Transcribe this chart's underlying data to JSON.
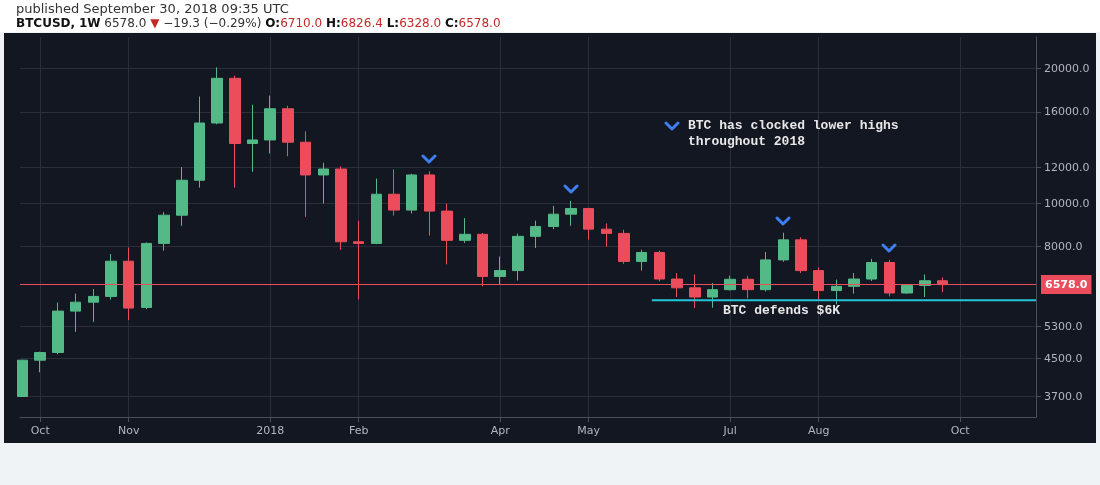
{
  "chart_data": {
    "type": "candlestick",
    "title": "published September 30, 2018 09:35 UTC",
    "subtitle": "BTCUSD, 1W 6578.0 ▼ −19.3 (−0.29%) O:6710.0 H:6826.4 L:6328.0 C:6578.0",
    "annotations": [
      "BTC has clocked lower highs throughout 2018",
      "BTC defends $6K"
    ],
    "xlim": [
      "2017-09-24",
      "2018-10-31"
    ],
    "xticks": [
      {
        "value": "2017-10-02",
        "label": "Oct"
      },
      {
        "value": "2017-11-06",
        "label": "Nov"
      },
      {
        "value": "2018-01-01",
        "label": "2018"
      },
      {
        "value": "2018-02-05",
        "label": "Feb"
      },
      {
        "value": "2018-04-02",
        "label": "Apr"
      },
      {
        "value": "2018-05-07",
        "label": "May"
      },
      {
        "value": "2018-07-02",
        "label": "Jul"
      },
      {
        "value": "2018-08-06",
        "label": "Aug"
      },
      {
        "value": "2018-10-01",
        "label": "Oct"
      }
    ],
    "ylim": [
      3330,
      23500
    ],
    "yticks": [
      {
        "value": 3700,
        "label": "3700.0"
      },
      {
        "value": 4500,
        "label": "4500.0"
      },
      {
        "value": 5300,
        "label": "5300.0"
      },
      {
        "value": 8000,
        "label": "8000.0"
      },
      {
        "value": 10000,
        "label": "10000.0"
      },
      {
        "value": 12000,
        "label": "12000.0"
      },
      {
        "value": 16000,
        "label": "16000.0"
      },
      {
        "value": 20000,
        "label": "20000.0"
      }
    ],
    "log": "y",
    "grid": true,
    "ref_lines": [
      {
        "axis": "y",
        "value": 6578,
        "label": "6578.0",
        "color": "#eb4d5c"
      }
    ],
    "series": [
      {
        "x": [
          "2017-09-25",
          "2017-10-02",
          "2017-10-09",
          "2017-10-16",
          "2017-10-23",
          "2017-10-30",
          "2017-11-06",
          "2017-11-13",
          "2017-11-20",
          "2017-11-27",
          "2017-12-04",
          "2017-12-11",
          "2017-12-18",
          "2017-12-25",
          "2018-01-01",
          "2018-01-08",
          "2018-01-15",
          "2018-01-22",
          "2018-01-29",
          "2018-02-05",
          "2018-02-12",
          "2018-02-19",
          "2018-02-26",
          "2018-03-05",
          "2018-03-12",
          "2018-03-19",
          "2018-03-26",
          "2018-04-02",
          "2018-04-09",
          "2018-04-16",
          "2018-04-23",
          "2018-04-30",
          "2018-05-07",
          "2018-05-14",
          "2018-05-21",
          "2018-05-28",
          "2018-06-04",
          "2018-06-11",
          "2018-06-18",
          "2018-06-25",
          "2018-07-02",
          "2018-07-09",
          "2018-07-16",
          "2018-07-23",
          "2018-07-30",
          "2018-08-06",
          "2018-08-13",
          "2018-08-20",
          "2018-08-27",
          "2018-09-03",
          "2018-09-10",
          "2018-09-17",
          "2018-09-24"
        ],
        "ohlc": [
          [
            3700,
            4470,
            3690,
            4460
          ],
          [
            4460,
            4660,
            4190,
            4640
          ],
          [
            4640,
            6000,
            4600,
            5740
          ],
          [
            5740,
            6280,
            5160,
            6010
          ],
          [
            6010,
            6430,
            5430,
            6190
          ],
          [
            6190,
            7700,
            6090,
            7420
          ],
          [
            7420,
            7960,
            5480,
            5830
          ],
          [
            5850,
            8170,
            5800,
            8130
          ],
          [
            8130,
            9560,
            7830,
            9400
          ],
          [
            9400,
            12040,
            8900,
            11250
          ],
          [
            11250,
            17300,
            10830,
            15100
          ],
          [
            15100,
            20100,
            15000,
            19000
          ],
          [
            19000,
            19270,
            10830,
            13590
          ],
          [
            13590,
            16590,
            11750,
            13840
          ],
          [
            13840,
            17390,
            12910,
            16250
          ],
          [
            16250,
            16500,
            12730,
            13680
          ],
          [
            13680,
            14470,
            9320,
            11560
          ],
          [
            11560,
            12310,
            9980,
            11920
          ],
          [
            11920,
            12080,
            7870,
            8200
          ],
          [
            8200,
            9140,
            6090,
            8130
          ],
          [
            8130,
            11340,
            8100,
            10470
          ],
          [
            10470,
            11900,
            9380,
            9650
          ],
          [
            9650,
            11630,
            9480,
            11560
          ],
          [
            11560,
            11790,
            8460,
            9600
          ],
          [
            9600,
            9980,
            7300,
            8260
          ],
          [
            8260,
            9260,
            8150,
            8520
          ],
          [
            8520,
            8580,
            6520,
            6860
          ],
          [
            6860,
            7600,
            6570,
            7070
          ],
          [
            7070,
            8550,
            6720,
            8430
          ],
          [
            8430,
            9140,
            7940,
            8870
          ],
          [
            8870,
            9860,
            8750,
            9450
          ],
          [
            9450,
            10120,
            8900,
            9730
          ],
          [
            9730,
            9760,
            8290,
            8750
          ],
          [
            8750,
            9010,
            8000,
            8560
          ],
          [
            8560,
            8720,
            7320,
            7410
          ],
          [
            7410,
            7870,
            7070,
            7760
          ],
          [
            7760,
            7830,
            6690,
            6770
          ],
          [
            6770,
            6980,
            6170,
            6470
          ],
          [
            6470,
            6930,
            5830,
            6170
          ],
          [
            6170,
            6630,
            5840,
            6410
          ],
          [
            6410,
            6890,
            6380,
            6760
          ],
          [
            6760,
            6880,
            6130,
            6410
          ],
          [
            6410,
            7780,
            6350,
            7470
          ],
          [
            7470,
            8590,
            7400,
            8280
          ],
          [
            8280,
            8390,
            6980,
            7070
          ],
          [
            7070,
            7190,
            6090,
            6380
          ],
          [
            6380,
            6750,
            5940,
            6520
          ],
          [
            6520,
            6980,
            6280,
            6770
          ],
          [
            6770,
            7510,
            6700,
            7370
          ],
          [
            7370,
            7470,
            6190,
            6300
          ],
          [
            6300,
            6600,
            6280,
            6550
          ],
          [
            6550,
            6930,
            6170,
            6710
          ],
          [
            6710,
            6826.4,
            6328,
            6578
          ]
        ],
        "colors": [
          "#53b987",
          "#53b987",
          "#53b987",
          "#53b987",
          "#53b987",
          "#53b987",
          "#eb4d5c",
          "#53b987",
          "#53b987",
          "#53b987",
          "#53b987",
          "#53b987",
          "#eb4d5c",
          "#53b987",
          "#53b987",
          "#eb4d5c",
          "#eb4d5c",
          "#53b987",
          "#eb4d5c",
          "#eb4d5c",
          "#53b987",
          "#eb4d5c",
          "#53b987",
          "#eb4d5c",
          "#eb4d5c",
          "#53b987",
          "#eb4d5c",
          "#53b987",
          "#53b987",
          "#53b987",
          "#53b987",
          "#53b987",
          "#eb4d5c",
          "#eb4d5c",
          "#eb4d5c",
          "#53b987",
          "#eb4d5c",
          "#eb4d5c",
          "#eb4d5c",
          "#53b987",
          "#53b987",
          "#eb4d5c",
          "#53b987",
          "#53b987",
          "#eb4d5c",
          "#eb4d5c",
          "#53b987",
          "#53b987",
          "#53b987",
          "#eb4d5c",
          "#53b987",
          "#53b987",
          "#eb4d5c"
        ]
      },
      {
        "type": "line",
        "color": "#26c6da",
        "marker": "none",
        "x": [
          "2018-06-01",
          "2018-10-31"
        ],
        "values": [
          6070,
          6070
        ]
      }
    ]
  }
}
